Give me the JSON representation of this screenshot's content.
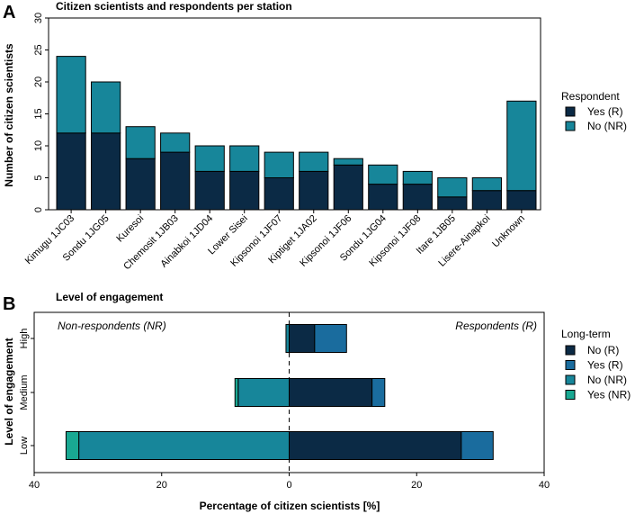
{
  "chart_data": [
    {
      "type": "bar",
      "panel": "A",
      "title": "Citizen scientists and respondents per station",
      "xlabel": "",
      "ylabel": "Number of citizen scientists",
      "ylim": [
        0,
        30
      ],
      "yticks": [
        0,
        5,
        10,
        15,
        20,
        25,
        30
      ],
      "stacked": true,
      "categories": [
        "Kimugu 1JC03",
        "Sondu 1JG05",
        "Kuresoi",
        "Chemosit 1JB03",
        "Ainabkoi 1JD04",
        "Lower Sisei",
        "Kipsonoi 1JF07",
        "Kiptiget 1JA02",
        "Kipsonoi 1JF06",
        "Sondu 1JG04",
        "Kipsonoi 1JF08",
        "Itare 1JB05",
        "Lisere-Ainapkoi",
        "Unknown"
      ],
      "series": [
        {
          "name": "Yes (R)",
          "color": "#0b2a45",
          "values": [
            12,
            12,
            8,
            9,
            6,
            6,
            5,
            6,
            7,
            4,
            4,
            2,
            3,
            3
          ]
        },
        {
          "name": "No (NR)",
          "color": "#17869a",
          "values": [
            12,
            8,
            5,
            3,
            4,
            4,
            4,
            3,
            1,
            3,
            2,
            3,
            2,
            14
          ]
        }
      ],
      "legend": {
        "title": "Respondent",
        "position": "right"
      }
    },
    {
      "type": "bar",
      "orientation": "horizontal",
      "panel": "B",
      "title": "Level of engagement",
      "xlabel": "Percentage of citizen scientists [%]",
      "ylabel": "Level of engagement",
      "xlim": [
        -40,
        40
      ],
      "xticks": [
        -40,
        -20,
        0,
        20,
        40
      ],
      "xtick_labels": [
        "40",
        "20",
        "0",
        "20",
        "40"
      ],
      "categories": [
        "Low",
        "Medium",
        "High"
      ],
      "series": [
        {
          "name": "No (R)",
          "color": "#0b2a45",
          "values": [
            27,
            13,
            4
          ]
        },
        {
          "name": "Yes (R)",
          "color": "#1a6c9e",
          "values": [
            5,
            2,
            5
          ]
        },
        {
          "name": "No (NR)",
          "color": "#17869a",
          "values": [
            33,
            8,
            0.5
          ]
        },
        {
          "name": "Yes (NR)",
          "color": "#19a892",
          "values": [
            2,
            0.5,
            0
          ]
        }
      ],
      "annotations": {
        "left": "Non-respondents (NR)",
        "right": "Respondents (R)"
      },
      "legend": {
        "title": "Long-term",
        "position": "right"
      }
    }
  ]
}
